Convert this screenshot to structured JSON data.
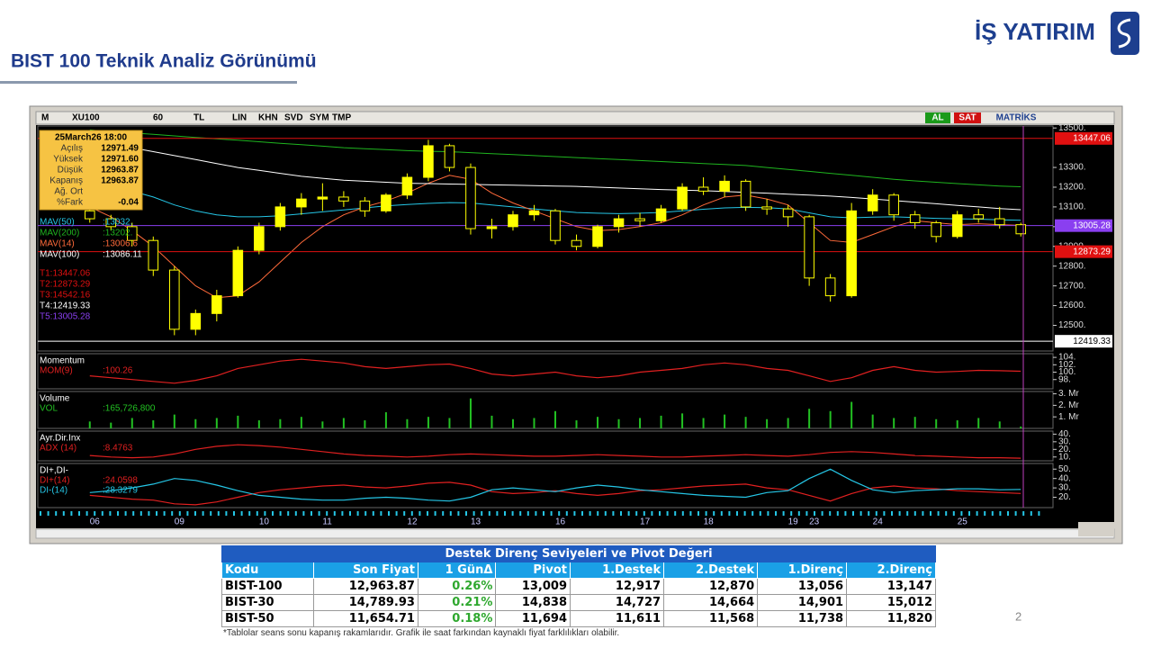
{
  "header": {
    "title": "BIST 100 Teknik Analiz Görünümü",
    "logo": "İŞ YATIRIM",
    "page_number": "2"
  },
  "toolbar": {
    "left": [
      "M",
      "XU100",
      "60",
      "TL",
      "LIN",
      "KHN",
      "SVD",
      "SYM",
      "TMP"
    ],
    "right": [
      "AL",
      "SAT",
      "MATRİKS"
    ]
  },
  "chart_data": [
    {
      "type": "candlestick",
      "categories": [
        "06",
        null,
        null,
        null,
        "09",
        null,
        null,
        null,
        "10",
        null,
        null,
        "11",
        null,
        null,
        null,
        "12",
        null,
        null,
        "13",
        null,
        null,
        null,
        "16",
        null,
        null,
        null,
        "17",
        null,
        null,
        "18",
        null,
        null,
        null,
        "19",
        "23",
        null,
        null,
        "24",
        null,
        null,
        null,
        "25",
        null,
        null,
        null
      ],
      "open": [
        13080,
        13040,
        13000,
        12930,
        12780,
        12480,
        12560,
        12650,
        12880,
        13000,
        13100,
        13140,
        13150,
        13130,
        13080,
        13160,
        13250,
        13410,
        13300,
        12990,
        13000,
        13060,
        13080,
        12930,
        12900,
        13000,
        13040,
        13030,
        13090,
        13200,
        13180,
        13230,
        13100,
        13090,
        13050,
        12740,
        12650,
        13080,
        13160,
        13060,
        13020,
        12950,
        13060,
        13040,
        13010
      ],
      "high": [
        13100,
        13060,
        13020,
        12950,
        12800,
        12580,
        12680,
        12900,
        13020,
        13120,
        13170,
        13220,
        13180,
        13150,
        13170,
        13270,
        13440,
        13420,
        13320,
        13040,
        13080,
        13110,
        13090,
        12960,
        13010,
        13060,
        13070,
        13110,
        13220,
        13250,
        13260,
        13240,
        13140,
        13110,
        13060,
        12760,
        13120,
        13190,
        13170,
        13080,
        13030,
        13080,
        13090,
        13100,
        13020
      ],
      "low": [
        13020,
        12980,
        12900,
        12750,
        12450,
        12450,
        12520,
        12640,
        12860,
        12980,
        13060,
        13080,
        13100,
        13050,
        13070,
        13140,
        13230,
        13280,
        12960,
        12940,
        12980,
        13030,
        12910,
        12880,
        12890,
        12970,
        13000,
        13020,
        13080,
        13160,
        13150,
        13080,
        13060,
        13000,
        12700,
        12620,
        12640,
        13060,
        13030,
        12990,
        12920,
        12940,
        13020,
        12990,
        12950
      ],
      "close": [
        13040,
        13000,
        12930,
        12780,
        12480,
        12560,
        12650,
        12880,
        13000,
        13100,
        13140,
        13150,
        13130,
        13080,
        13160,
        13250,
        13410,
        13300,
        12990,
        13000,
        13060,
        13080,
        12930,
        12900,
        13000,
        13040,
        13030,
        13090,
        13200,
        13180,
        13230,
        13100,
        13090,
        13050,
        12740,
        12650,
        13080,
        13160,
        13060,
        13020,
        12950,
        13060,
        13040,
        13010,
        12963.87
      ],
      "up_color": "#ffff00",
      "down_color": "#000000",
      "ylim": [
        12370,
        13510
      ],
      "yticks": [
        {
          "value": 12500,
          "label": "12500."
        },
        {
          "value": 12600,
          "label": "12600."
        },
        {
          "value": 12700,
          "label": "12700."
        },
        {
          "value": 12800,
          "label": "12800."
        },
        {
          "value": 12900,
          "label": "12900."
        },
        {
          "value": 13000,
          "label": "13000."
        },
        {
          "value": 13100,
          "label": "13100."
        },
        {
          "value": 13200,
          "label": "13200."
        },
        {
          "value": 13300,
          "label": "13300."
        },
        {
          "value": 13500,
          "label": "13500."
        }
      ],
      "series": [
        {
          "name": "MAV(50)",
          "value_label": ":13032.",
          "color": "#25c6e6",
          "values": [
            13220,
            13200,
            13180,
            13150,
            13110,
            13080,
            13060,
            13050,
            13050,
            13055,
            13065,
            13075,
            13085,
            13095,
            13105,
            13112,
            13118,
            13122,
            13120,
            13110,
            13100,
            13090,
            13080,
            13072,
            13068,
            13066,
            13068,
            13072,
            13080,
            13088,
            13095,
            13098,
            13096,
            13090,
            13070,
            13050,
            13045,
            13048,
            13050,
            13046,
            13042,
            13040,
            13038,
            13035,
            13032
          ]
        },
        {
          "name": "MAV(200)",
          "value_label": ":13202.",
          "color": "#1fb51f",
          "values": [
            13490,
            13480,
            13475,
            13468,
            13460,
            13452,
            13445,
            13438,
            13430,
            13422,
            13415,
            13408,
            13400,
            13395,
            13390,
            13385,
            13382,
            13380,
            13375,
            13370,
            13365,
            13360,
            13355,
            13350,
            13345,
            13340,
            13335,
            13330,
            13325,
            13320,
            13315,
            13310,
            13300,
            13290,
            13280,
            13270,
            13260,
            13250,
            13240,
            13232,
            13225,
            13218,
            13212,
            13206,
            13202
          ]
        },
        {
          "name": "MAV(14)",
          "value_label": ":13006.6",
          "color": "#ff6a3a",
          "values": [
            13100,
            13050,
            12980,
            12900,
            12800,
            12700,
            12640,
            12650,
            12720,
            12820,
            12920,
            13000,
            13060,
            13100,
            13130,
            13170,
            13220,
            13260,
            13240,
            13170,
            13120,
            13080,
            13040,
            13000,
            12980,
            12985,
            13000,
            13020,
            13060,
            13110,
            13150,
            13160,
            13140,
            13110,
            13020,
            12930,
            12920,
            12960,
            13000,
            13030,
            13020,
            13010,
            13015,
            13010,
            13006.6
          ]
        },
        {
          "name": "MAV(100)",
          "value_label": ":13086.11",
          "color": "#ffffff",
          "values": [
            13450,
            13420,
            13400,
            13380,
            13360,
            13340,
            13320,
            13300,
            13285,
            13270,
            13255,
            13245,
            13235,
            13230,
            13225,
            13220,
            13218,
            13216,
            13214,
            13212,
            13210,
            13208,
            13206,
            13204,
            13200,
            13196,
            13192,
            13188,
            13185,
            13182,
            13178,
            13174,
            13170,
            13165,
            13160,
            13155,
            13148,
            13140,
            13132,
            13124,
            13116,
            13108,
            13100,
            13092,
            13086.11
          ]
        }
      ],
      "levels": [
        {
          "label": "T1:13447.06",
          "value": 13447.06,
          "color": "#e01010"
        },
        {
          "label": "T2:12873.29",
          "value": 12873.29,
          "color": "#e01010"
        },
        {
          "label": "T3:14542.16",
          "value": 14542.16,
          "color": "#e01010"
        },
        {
          "label": "T4:12419.33",
          "value": 12419.33,
          "color": "#ffffff"
        },
        {
          "label": "T5:13005.28",
          "value": 13005.28,
          "color": "#8a3ff0"
        }
      ],
      "info_box": {
        "title": "25March26 18:00",
        "rows": [
          {
            "label": "Açılış",
            "value": "12971.49"
          },
          {
            "label": "Yüksek",
            "value": "12971.60"
          },
          {
            "label": "Düşük",
            "value": "12963.87"
          },
          {
            "label": "Kapanış",
            "value": "12963.87"
          },
          {
            "label": "Ağ. Ort"
          },
          {
            "label": "%Fark",
            "value": "-0.04"
          }
        ]
      }
    },
    {
      "type": "line",
      "title": "Momentum",
      "ylim": [
        95.5,
        105
      ],
      "yticks": [
        {
          "value": 98,
          "label": "98."
        },
        {
          "value": 100,
          "label": "100."
        },
        {
          "value": 102,
          "label": "102."
        },
        {
          "value": 104,
          "label": "104."
        }
      ],
      "series": [
        {
          "name": "MOM(9)",
          "value_label": ":100.26",
          "color": "#e02020",
          "values": [
            99,
            98.5,
            98,
            97.5,
            97,
            97.8,
            99,
            101,
            102,
            103,
            103.5,
            103,
            102.5,
            101.5,
            101,
            101.5,
            102,
            102.2,
            101,
            99.5,
            99,
            99.5,
            100,
            99,
            98.5,
            99,
            100,
            100.5,
            101,
            102,
            102.5,
            102,
            101,
            100.5,
            99,
            97.5,
            98.5,
            100.5,
            101.5,
            100.5,
            100,
            100.2,
            100.5,
            100.4,
            100.26
          ]
        }
      ]
    },
    {
      "type": "bar",
      "title": "Volume",
      "ylim": [
        0,
        3200000000
      ],
      "yticks": [
        {
          "value": 1000000000,
          "label": "1. Mr"
        },
        {
          "value": 2000000000,
          "label": "2. Mr"
        },
        {
          "value": 3000000000,
          "label": "3. Mr"
        }
      ],
      "series": [
        {
          "name": "VOL",
          "value_label": ":165,726,800",
          "color": "#22c022",
          "values": [
            600000000,
            500000000,
            900000000,
            700000000,
            1200000000,
            800000000,
            900000000,
            1100000000,
            700000000,
            800000000,
            1000000000,
            600000000,
            900000000,
            700000000,
            1400000000,
            800000000,
            1000000000,
            900000000,
            2600000000,
            1100000000,
            800000000,
            900000000,
            1500000000,
            700000000,
            1000000000,
            800000000,
            900000000,
            1100000000,
            1300000000,
            900000000,
            1200000000,
            1000000000,
            800000000,
            900000000,
            1700000000,
            1500000000,
            2300000000,
            1200000000,
            900000000,
            1000000000,
            800000000,
            700000000,
            900000000,
            600000000,
            165726800
          ]
        }
      ]
    },
    {
      "type": "line",
      "title": "Ayr.Dir.Inx",
      "ylim": [
        5,
        44
      ],
      "yticks": [
        {
          "value": 10,
          "label": "10."
        },
        {
          "value": 20,
          "label": "20."
        },
        {
          "value": 30,
          "label": "30."
        },
        {
          "value": 40,
          "label": "40."
        }
      ],
      "series": [
        {
          "name": "ADX (14)",
          "value_label": ":8.4763",
          "color": "#e02020",
          "values": [
            12,
            10,
            9,
            10,
            14,
            20,
            24,
            26,
            25,
            23,
            20,
            17,
            14,
            12,
            11,
            10,
            11,
            13,
            14,
            13,
            12,
            11,
            11,
            12,
            13,
            12,
            11,
            10,
            10,
            11,
            12,
            13,
            12,
            11,
            13,
            16,
            17,
            16,
            14,
            12,
            11,
            10,
            9,
            9,
            8.4763
          ]
        }
      ]
    },
    {
      "type": "line",
      "title": "DI+,DI-",
      "ylim": [
        9,
        56
      ],
      "yticks": [
        {
          "value": 20,
          "label": "20."
        },
        {
          "value": 30,
          "label": "30."
        },
        {
          "value": 40,
          "label": "40."
        },
        {
          "value": 50,
          "label": "50."
        }
      ],
      "series": [
        {
          "name": "DI+(14)",
          "value_label": ":24.0598",
          "color": "#e02020",
          "values": [
            22,
            20,
            18,
            17,
            13,
            12,
            15,
            20,
            25,
            28,
            30,
            32,
            33,
            31,
            30,
            32,
            35,
            36,
            33,
            26,
            24,
            25,
            27,
            24,
            22,
            24,
            27,
            28,
            30,
            32,
            33,
            34,
            30,
            28,
            22,
            16,
            24,
            30,
            32,
            30,
            29,
            27,
            26,
            25,
            24.0598
          ]
        },
        {
          "name": "DI-(14)",
          "value_label": ":28.3279",
          "color": "#25c6e6",
          "values": [
            25,
            27,
            30,
            34,
            40,
            38,
            33,
            27,
            22,
            20,
            18,
            17,
            17,
            19,
            20,
            19,
            17,
            16,
            20,
            28,
            30,
            28,
            26,
            30,
            33,
            31,
            28,
            26,
            24,
            22,
            21,
            20,
            25,
            27,
            40,
            50,
            38,
            28,
            25,
            27,
            28,
            29,
            29,
            28,
            28.3279
          ]
        }
      ]
    }
  ],
  "table": {
    "title": "Destek Direnç Seviyeleri ve Pivot Değeri",
    "columns": [
      "Kodu",
      "Son Fiyat",
      "1 GünΔ",
      "Pivot",
      "1.Destek",
      "2.Destek",
      "1.Direnç",
      "2.Direnç"
    ],
    "rows": [
      [
        "BIST-100",
        "12,963.87",
        "0.26%",
        "13,009",
        "12,917",
        "12,870",
        "13,056",
        "13,147"
      ],
      [
        "BIST-30",
        "14,789.93",
        "0.21%",
        "14,838",
        "14,727",
        "14,664",
        "14,901",
        "15,012"
      ],
      [
        "BIST-50",
        "11,654.71",
        "0.18%",
        "11,694",
        "11,611",
        "11,568",
        "11,738",
        "11,820"
      ]
    ]
  },
  "footnote": "*Tablolar seans sonu kapanış rakamlarıdır. Grafik ile saat farkından kaynaklı fiyat farklılıkları olabilir."
}
